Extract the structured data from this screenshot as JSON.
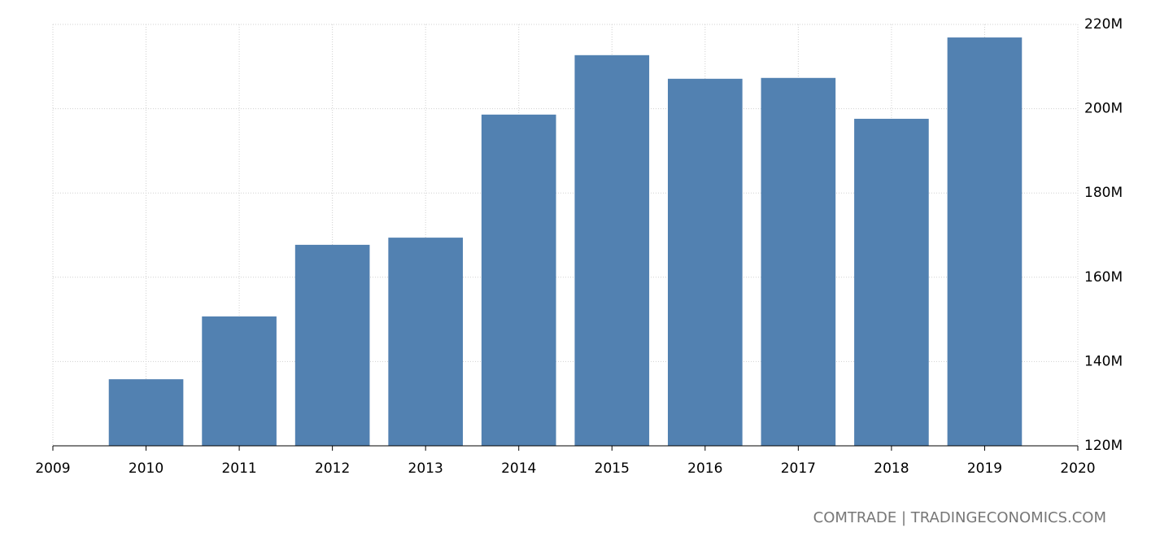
{
  "chart_data": {
    "type": "bar",
    "x": [
      2010,
      2011,
      2012,
      2013,
      2014,
      2015,
      2016,
      2017,
      2018,
      2019
    ],
    "values": [
      135800000,
      150700000,
      167700000,
      169400000,
      198600000,
      212700000,
      207100000,
      207300000,
      197600000,
      216900000
    ],
    "color": "#5281b1",
    "xlim": [
      2009,
      2020
    ],
    "xticks": [
      2009,
      2010,
      2011,
      2012,
      2013,
      2014,
      2015,
      2016,
      2017,
      2018,
      2019,
      2020
    ],
    "ylim": [
      120000000,
      220000000
    ],
    "yticks": [
      {
        "value": 120000000,
        "label": "120M"
      },
      {
        "value": 140000000,
        "label": "140M"
      },
      {
        "value": 160000000,
        "label": "160M"
      },
      {
        "value": 180000000,
        "label": "180M"
      },
      {
        "value": 200000000,
        "label": "200M"
      },
      {
        "value": 220000000,
        "label": "220M"
      }
    ],
    "grid": true,
    "source": "COMTRADE | TRADINGECONOMICS.COM"
  }
}
